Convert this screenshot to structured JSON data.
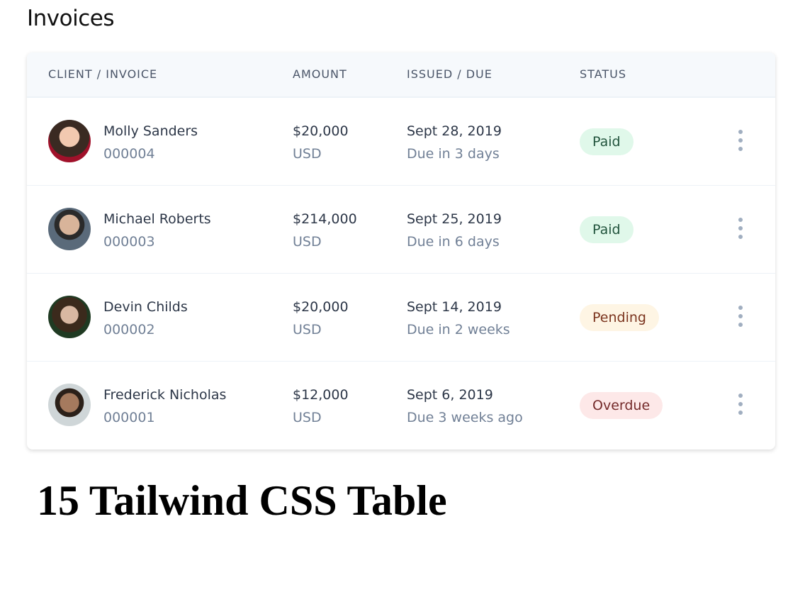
{
  "page_title": "Invoices",
  "table": {
    "headers": [
      "CLIENT / INVOICE",
      "AMOUNT",
      "ISSUED / DUE",
      "STATUS"
    ],
    "rows": [
      {
        "name": "Molly Sanders",
        "invoice": "000004",
        "amount": "$20,000",
        "currency": "USD",
        "issued": "Sept 28, 2019",
        "due": "Due in 3 days",
        "status": "Paid"
      },
      {
        "name": "Michael Roberts",
        "invoice": "000003",
        "amount": "$214,000",
        "currency": "USD",
        "issued": "Sept 25, 2019",
        "due": "Due in 6 days",
        "status": "Paid"
      },
      {
        "name": "Devin Childs",
        "invoice": "000002",
        "amount": "$20,000",
        "currency": "USD",
        "issued": "Sept 14, 2019",
        "due": "Due in 2 weeks",
        "status": "Pending"
      },
      {
        "name": "Frederick Nicholas",
        "invoice": "000001",
        "amount": "$12,000",
        "currency": "USD",
        "issued": "Sept 6, 2019",
        "due": "Due 3 weeks ago",
        "status": "Overdue"
      }
    ]
  },
  "status_colors": {
    "Paid": {
      "bg": "#e0f8ea",
      "fg": "#22543d"
    },
    "Pending": {
      "bg": "#fef5e4",
      "fg": "#7b341e"
    },
    "Overdue": {
      "bg": "#fde8e8",
      "fg": "#742a2a"
    }
  },
  "footer_heading": "15 Tailwind CSS Table"
}
